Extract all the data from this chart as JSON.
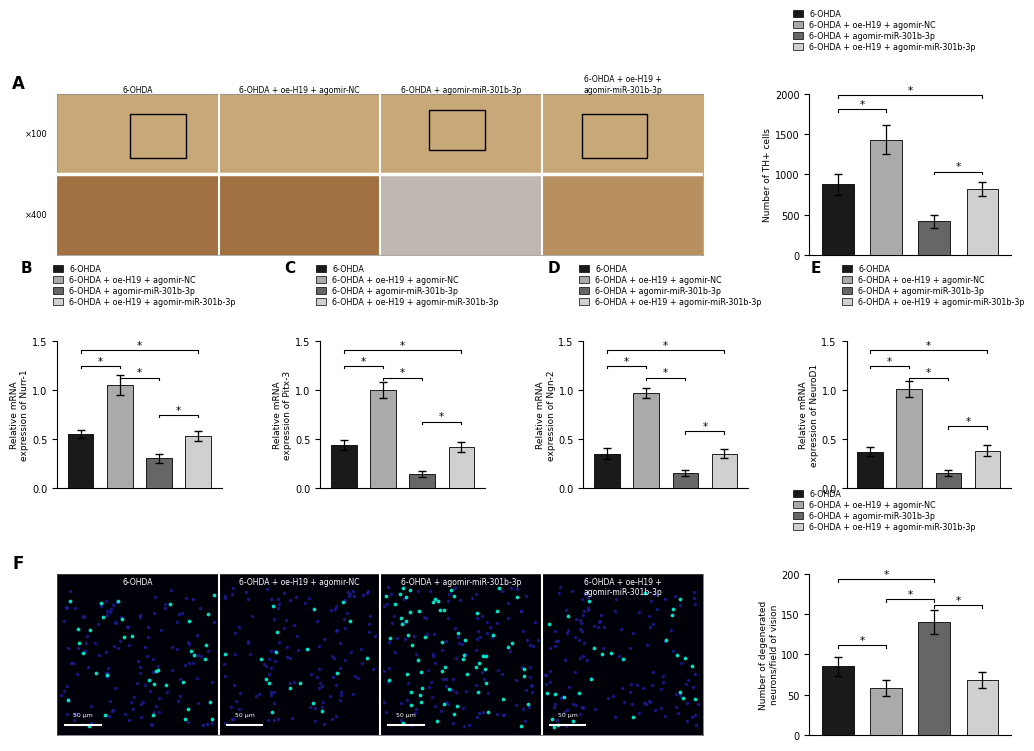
{
  "colors": [
    "#1a1a1a",
    "#aaaaaa",
    "#666666",
    "#d0d0d0"
  ],
  "panel_A": {
    "values": [
      880,
      1430,
      420,
      820
    ],
    "errors": [
      130,
      180,
      80,
      90
    ],
    "ylabel": "Number of TH+ cells",
    "ylim": [
      0,
      2000
    ],
    "yticks": [
      0,
      500,
      1000,
      1500,
      2000
    ],
    "sig_brackets": [
      [
        0,
        1,
        1780,
        "*"
      ],
      [
        0,
        3,
        1950,
        "*"
      ],
      [
        2,
        3,
        1000,
        "*"
      ]
    ]
  },
  "panel_B": {
    "values": [
      0.55,
      1.05,
      0.3,
      0.53
    ],
    "errors": [
      0.04,
      0.1,
      0.05,
      0.05
    ],
    "ylabel": "Relative mRNA\nexpression of Nurr-1",
    "ylim": [
      0,
      1.5
    ],
    "yticks": [
      0.0,
      0.5,
      1.0,
      1.5
    ],
    "sig_brackets": [
      [
        0,
        1,
        1.22,
        "*"
      ],
      [
        1,
        2,
        1.1,
        "*"
      ],
      [
        0,
        3,
        1.38,
        "*"
      ],
      [
        2,
        3,
        0.72,
        "*"
      ]
    ]
  },
  "panel_C": {
    "values": [
      0.44,
      1.0,
      0.14,
      0.42
    ],
    "errors": [
      0.05,
      0.08,
      0.03,
      0.05
    ],
    "ylabel": "Relative mRNA\nexpression of Pitx-3",
    "ylim": [
      0,
      1.5
    ],
    "yticks": [
      0.0,
      0.5,
      1.0,
      1.5
    ],
    "sig_brackets": [
      [
        0,
        1,
        1.22,
        "*"
      ],
      [
        1,
        2,
        1.1,
        "*"
      ],
      [
        0,
        3,
        1.38,
        "*"
      ],
      [
        2,
        3,
        0.65,
        "*"
      ]
    ]
  },
  "panel_D": {
    "values": [
      0.35,
      0.97,
      0.15,
      0.35
    ],
    "errors": [
      0.06,
      0.05,
      0.03,
      0.05
    ],
    "ylabel": "Relative mRNA\nexpression of Ngn-2",
    "ylim": [
      0,
      1.5
    ],
    "yticks": [
      0.0,
      0.5,
      1.0,
      1.5
    ],
    "sig_brackets": [
      [
        0,
        1,
        1.22,
        "*"
      ],
      [
        1,
        2,
        1.1,
        "*"
      ],
      [
        0,
        3,
        1.38,
        "*"
      ],
      [
        2,
        3,
        0.55,
        "*"
      ]
    ]
  },
  "panel_E": {
    "values": [
      0.37,
      1.01,
      0.15,
      0.38
    ],
    "errors": [
      0.05,
      0.08,
      0.03,
      0.06
    ],
    "ylabel": "Relative mRNA\nexpression of NeuroD1",
    "ylim": [
      0,
      1.5
    ],
    "yticks": [
      0.0,
      0.5,
      1.0,
      1.5
    ],
    "sig_brackets": [
      [
        0,
        1,
        1.22,
        "*"
      ],
      [
        1,
        2,
        1.1,
        "*"
      ],
      [
        0,
        3,
        1.38,
        "*"
      ],
      [
        2,
        3,
        0.6,
        "*"
      ]
    ]
  },
  "panel_F": {
    "values": [
      85,
      58,
      140,
      68
    ],
    "errors": [
      12,
      10,
      15,
      10
    ],
    "ylabel": "Number of degenerated\nneurons/field of vision",
    "ylim": [
      0,
      200
    ],
    "yticks": [
      0,
      50,
      100,
      150,
      200
    ],
    "sig_brackets": [
      [
        0,
        1,
        108,
        "*"
      ],
      [
        0,
        2,
        190,
        "*"
      ],
      [
        1,
        2,
        165,
        "*"
      ],
      [
        2,
        3,
        158,
        "*"
      ]
    ]
  },
  "legend_labels": [
    "6-OHDA",
    "6-OHDA + oe-H19 + agomir-NC",
    "6-OHDA + agomir-miR-301b-3p",
    "6-OHDA + oe-H19 + agomir-miR-301b-3p"
  ],
  "img_labels_A": [
    "6-OHDA",
    "6-OHDA + oe-H19 + agomir-NC",
    "6-OHDA + agomir-miR-301b-3p",
    "6-OHDA + oe-H19 +\nagomir-miR-301b-3p"
  ],
  "img_labels_F": [
    "6-OHDA",
    "6-OHDA + oe-H19 + agomir-NC",
    "6-OHDA + agomir-miR-301b-3p",
    "6-OHDA + oe-H19 +\nagomir-miR-301b-3p"
  ],
  "row_labels_A": [
    "×100",
    "×400"
  ],
  "background_color": "#ffffff",
  "cell_colors_top": [
    "#c8a878",
    "#c8a878",
    "#c8a878",
    "#c8a878"
  ],
  "cell_colors_bottom": [
    "#a07040",
    "#a07040",
    "#c0b8b0",
    "#b89060"
  ],
  "f_dot_counts_cyan": [
    35,
    18,
    65,
    28
  ],
  "f_dot_counts_blue": [
    120,
    120,
    120,
    120
  ]
}
